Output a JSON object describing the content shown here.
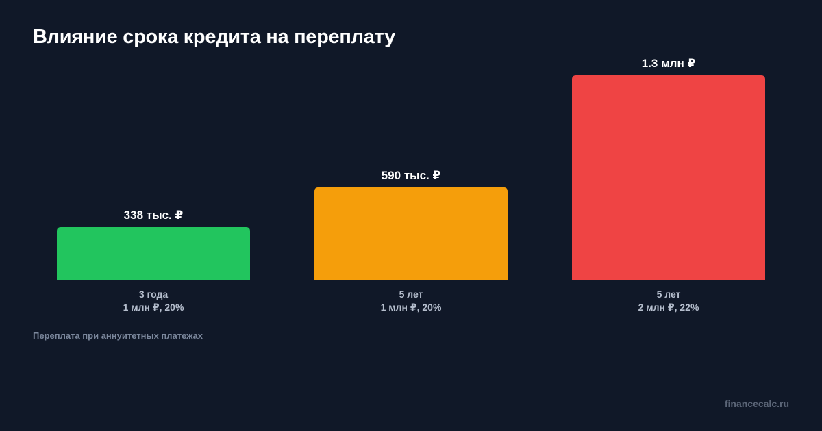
{
  "title": "Влияние срока кредита на переплату",
  "note": "Переплата при аннуитетных платежах",
  "brand": "financecalc.ru",
  "chart_data": {
    "type": "bar",
    "title": "Влияние срока кредита на переплату",
    "categories": [
      [
        "3 года",
        "1 млн ₽, 20%"
      ],
      [
        "5 лет",
        "1 млн ₽, 20%"
      ],
      [
        "5 лет",
        "2 млн ₽, 22%"
      ]
    ],
    "values": [
      338000,
      590000,
      1300000
    ],
    "value_labels": [
      "338 тыс. ₽",
      "590 тыс. ₽",
      "1.3 млн ₽"
    ],
    "colors": [
      "#22c55e",
      "#f59e0b",
      "#ef4444"
    ],
    "ylim": [
      0,
      1300000
    ],
    "grid": false,
    "legend": "none"
  },
  "colors": {
    "background": "#101828",
    "title": "#ffffff",
    "category_label": "#b4bdcc",
    "note": "#7b879c",
    "brand": "#5b6577"
  }
}
